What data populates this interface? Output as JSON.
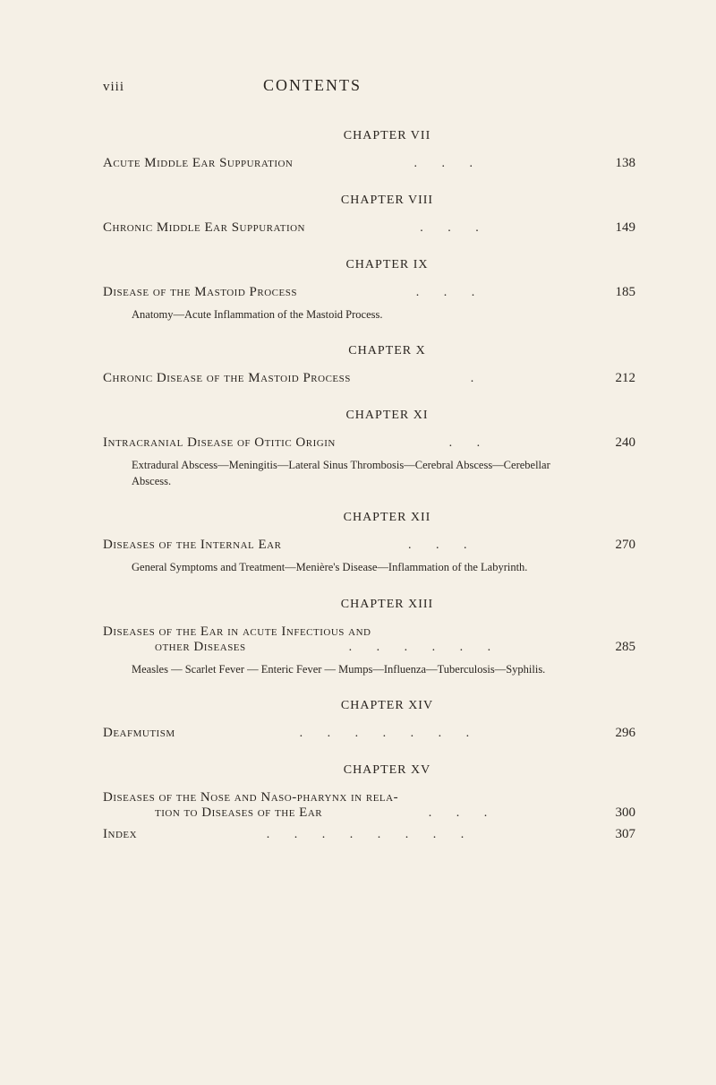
{
  "page": {
    "number": "viii",
    "title": "CONTENTS"
  },
  "chapters": [
    {
      "heading": "CHAPTER VII",
      "entry_title": "Acute Middle Ear Suppuration",
      "dots": ". . .",
      "page": "138",
      "sub": ""
    },
    {
      "heading": "CHAPTER VIII",
      "entry_title": "Chronic Middle Ear Suppuration",
      "dots": ". . .",
      "page": "149",
      "sub": ""
    },
    {
      "heading": "CHAPTER IX",
      "entry_title": "Disease of the Mastoid Process",
      "dots": ". . .",
      "page": "185",
      "sub": "Anatomy—Acute Inflammation of the Mastoid Process."
    },
    {
      "heading": "CHAPTER X",
      "entry_title": "Chronic Disease of the Mastoid Process",
      "dots": ".",
      "page": "212",
      "sub": ""
    },
    {
      "heading": "CHAPTER XI",
      "entry_title": "Intracranial Disease of Otitic Origin",
      "dots": ". .",
      "page": "240",
      "sub": "Extradural Abscess—Meningitis—Lateral Sinus Thrombosis—Cerebral Abscess—Cerebellar Abscess."
    },
    {
      "heading": "CHAPTER XII",
      "entry_title": "Diseases of the Internal Ear",
      "dots": ". . .",
      "page": "270",
      "sub": "General Symptoms and Treatment—Menière's Disease—Inflammation of the Labyrinth."
    },
    {
      "heading": "CHAPTER XIII",
      "entry_title": "Diseases of the Ear in acute Infectious and",
      "continuation": "other Diseases",
      "dots": ". . . . . .",
      "page": "285",
      "sub": "Measles — Scarlet Fever — Enteric Fever — Mumps—Influenza—Tuberculosis—Syphilis."
    },
    {
      "heading": "CHAPTER XIV",
      "entry_title": "Deafmutism",
      "dots": ". . . . . . .",
      "page": "296",
      "sub": ""
    },
    {
      "heading": "CHAPTER XV",
      "entry_title": "Diseases of the Nose and Naso-pharynx in rela-",
      "continuation": "tion to Diseases of the Ear",
      "dots": ". . .",
      "page": "300",
      "sub": ""
    }
  ],
  "index": {
    "title": "Index",
    "dots": ". . . . . . . .",
    "page": "307"
  },
  "colors": {
    "background": "#f5f0e6",
    "text": "#2a2520"
  }
}
